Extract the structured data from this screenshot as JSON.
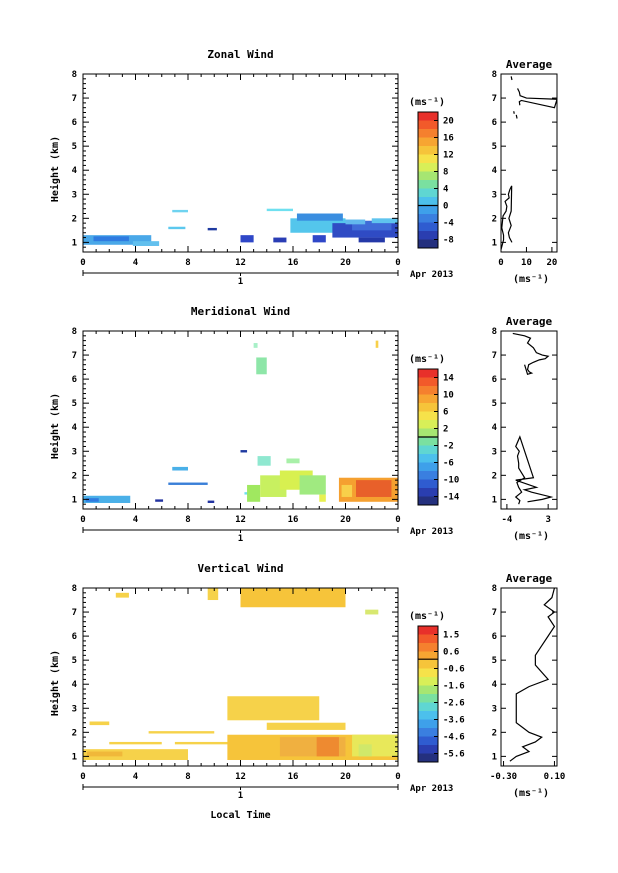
{
  "chart_data": [
    {
      "type": "heatmap",
      "title": "Zonal Wind",
      "ylabel": "Height (km)",
      "ylim": [
        0.6,
        8
      ],
      "yticks": [
        "1",
        "2",
        "3",
        "4",
        "5",
        "6",
        "7",
        "8"
      ],
      "xlim": [
        0,
        24
      ],
      "xticks": [
        "0",
        "4",
        "8",
        "12",
        "16",
        "20",
        "0"
      ],
      "day_label": "1",
      "month_label": "Apr 2013",
      "colorbar": {
        "unit": "(ms⁻¹)",
        "ticks": [
          "20",
          "16",
          "12",
          "8",
          "4",
          "0",
          "-4",
          "-8"
        ],
        "min": -10,
        "max": 22,
        "zero_line": 0
      },
      "patches": [
        {
          "x0": 0,
          "x1": 5.2,
          "y0": 0.9,
          "y1": 1.3,
          "c": "#4aa8e8"
        },
        {
          "x0": 0.8,
          "x1": 3.5,
          "y0": 1.05,
          "y1": 1.25,
          "c": "#2f7be0"
        },
        {
          "x0": 3.8,
          "x1": 5.8,
          "y0": 0.85,
          "y1": 1.05,
          "c": "#62c0ee"
        },
        {
          "x0": 6.8,
          "x1": 8,
          "y0": 2.25,
          "y1": 2.35,
          "c": "#6fd3f0"
        },
        {
          "x0": 6.5,
          "x1": 7.8,
          "y0": 1.55,
          "y1": 1.65,
          "c": "#5cc8ee"
        },
        {
          "x0": 9.5,
          "x1": 10.2,
          "y0": 1.5,
          "y1": 1.6,
          "c": "#1f3aa0"
        },
        {
          "x0": 12,
          "x1": 13,
          "y0": 1.0,
          "y1": 1.3,
          "c": "#2f47c8"
        },
        {
          "x0": 14,
          "x1": 16,
          "y0": 2.3,
          "y1": 2.4,
          "c": "#6fe0f0"
        },
        {
          "x0": 14.5,
          "x1": 15.5,
          "y0": 1.0,
          "y1": 1.2,
          "c": "#2a3db5"
        },
        {
          "x0": 15.8,
          "x1": 20,
          "y0": 1.4,
          "y1": 2.0,
          "c": "#54c6ec"
        },
        {
          "x0": 16.3,
          "x1": 19.8,
          "y0": 1.9,
          "y1": 2.2,
          "c": "#3a8ee0"
        },
        {
          "x0": 17.5,
          "x1": 18.5,
          "y0": 1.0,
          "y1": 1.3,
          "c": "#2f47c8"
        },
        {
          "x0": 19,
          "x1": 24,
          "y0": 1.2,
          "y1": 1.8,
          "c": "#2f4bc4"
        },
        {
          "x0": 20.5,
          "x1": 23.5,
          "y0": 1.5,
          "y1": 1.9,
          "c": "#3f6bd8"
        },
        {
          "x0": 21,
          "x1": 23,
          "y0": 1.0,
          "y1": 1.2,
          "c": "#2438a8"
        },
        {
          "x0": 20,
          "x1": 21.5,
          "y0": 1.75,
          "y1": 1.95,
          "c": "#63b9ee"
        },
        {
          "x0": 22,
          "x1": 24,
          "y0": 1.8,
          "y1": 2.0,
          "c": "#5fc4ee"
        }
      ],
      "profile": {
        "x": [
          0,
          0.5,
          1,
          1,
          0.3,
          0.5,
          0.8,
          2,
          2.3,
          1.6,
          3.2,
          2.9,
          3.5,
          4.2,
          4,
          3.1,
          4,
          2.9,
          3.3,
          4.3
        ],
        "y": [
          0.7,
          0.9,
          1.1,
          1.3,
          1.6,
          1.8,
          2.1,
          2.3,
          2.5,
          2.7,
          2.85,
          3.0,
          3.2,
          3.35,
          2.3,
          2.0,
          1.7,
          1.4,
          1.2,
          1.0
        ],
        "segments": [
          {
            "x": [
              6.5,
              7.2,
              7.5,
              10,
              22,
              21,
              8,
              7.2,
              7.4
            ],
            "y": [
              7.4,
              7.25,
              7.1,
              7.0,
              6.95,
              6.6,
              6.9,
              6.85,
              6.7
            ]
          },
          {
            "x": [
              6.0,
              6.3
            ],
            "y": [
              6.3,
              6.15
            ]
          },
          {
            "x": [
              4.0,
              4.3
            ],
            "y": [
              7.9,
              7.75
            ]
          },
          {
            "x": [
              5.0,
              5.2
            ],
            "y": [
              6.45,
              6.35
            ]
          }
        ],
        "xlim": [
          0,
          22
        ],
        "xticks": [
          "0",
          "10",
          "20"
        ],
        "title": "Average",
        "xlabel": "(ms⁻¹)"
      }
    },
    {
      "type": "heatmap",
      "title": "Meridional Wind",
      "ylabel": "Height (km)",
      "ylim": [
        0.6,
        8
      ],
      "yticks": [
        "1",
        "2",
        "3",
        "4",
        "5",
        "6",
        "7",
        "8"
      ],
      "xlim": [
        0,
        24
      ],
      "xticks": [
        "0",
        "4",
        "8",
        "12",
        "16",
        "20",
        "0"
      ],
      "day_label": "1",
      "month_label": "Apr 2013",
      "colorbar": {
        "unit": "(ms⁻¹)",
        "ticks": [
          "14",
          "10",
          "6",
          "2",
          "-2",
          "-6",
          "-10",
          "-14"
        ],
        "min": -16,
        "max": 16,
        "zero_line": 0
      },
      "patches": [
        {
          "x0": 0,
          "x1": 3.6,
          "y0": 0.85,
          "y1": 1.15,
          "c": "#4ab0e8"
        },
        {
          "x0": 0.2,
          "x1": 1.2,
          "y0": 0.9,
          "y1": 1.05,
          "c": "#2f7be0"
        },
        {
          "x0": 5.5,
          "x1": 6.1,
          "y0": 0.9,
          "y1": 1.0,
          "c": "#2233a0"
        },
        {
          "x0": 6.8,
          "x1": 8,
          "y0": 2.2,
          "y1": 2.35,
          "c": "#4ab0e8"
        },
        {
          "x0": 6.5,
          "x1": 9.5,
          "y0": 1.6,
          "y1": 1.7,
          "c": "#3a7fd8"
        },
        {
          "x0": 9.5,
          "x1": 10,
          "y0": 0.85,
          "y1": 0.95,
          "c": "#2233a0"
        },
        {
          "x0": 12,
          "x1": 12.5,
          "y0": 2.95,
          "y1": 3.05,
          "c": "#1f3aa0"
        },
        {
          "x0": 12.3,
          "x1": 13,
          "y0": 1.2,
          "y1": 1.3,
          "c": "#6ee0ee"
        },
        {
          "x0": 13.2,
          "x1": 14,
          "y0": 6.2,
          "y1": 6.9,
          "c": "#8ee6a8"
        },
        {
          "x0": 13.0,
          "x1": 13.3,
          "y0": 7.3,
          "y1": 7.5,
          "c": "#a8f0c8"
        },
        {
          "x0": 13.3,
          "x1": 14.3,
          "y0": 2.4,
          "y1": 2.8,
          "c": "#8fe8d0"
        },
        {
          "x0": 12.5,
          "x1": 13.5,
          "y0": 0.9,
          "y1": 1.6,
          "c": "#a0e860"
        },
        {
          "x0": 13.5,
          "x1": 15.5,
          "y0": 1.1,
          "y1": 2.0,
          "c": "#c8f060"
        },
        {
          "x0": 15,
          "x1": 17.5,
          "y0": 1.4,
          "y1": 2.2,
          "c": "#d8f050"
        },
        {
          "x0": 15.5,
          "x1": 16.5,
          "y0": 2.5,
          "y1": 2.7,
          "c": "#a8f0a8"
        },
        {
          "x0": 16.5,
          "x1": 18.5,
          "y0": 1.2,
          "y1": 2.0,
          "c": "#a0ea80"
        },
        {
          "x0": 18,
          "x1": 18.5,
          "y0": 0.9,
          "y1": 1.2,
          "c": "#e8f050"
        },
        {
          "x0": 19.5,
          "x1": 24,
          "y0": 0.9,
          "y1": 1.9,
          "c": "#f5a030"
        },
        {
          "x0": 20.8,
          "x1": 23.5,
          "y0": 1.1,
          "y1": 1.8,
          "c": "#e8602a"
        },
        {
          "x0": 19.7,
          "x1": 20.5,
          "y0": 1.1,
          "y1": 1.6,
          "c": "#f8d04a"
        },
        {
          "x0": 22.3,
          "x1": 22.5,
          "y0": 7.3,
          "y1": 7.6,
          "c": "#f8d04a"
        }
      ],
      "profile": {
        "x": [
          -2,
          -1.8,
          -2.5,
          -1.5,
          -2,
          -2.3,
          -1.0,
          -1.5,
          -2.0,
          -2.0,
          -2.2,
          -1.9,
          -2.5,
          -1.8,
          0.5,
          -2.5,
          1.0,
          -1.0,
          0.2,
          3.5,
          2.0,
          -0.5
        ],
        "y": [
          0.8,
          0.95,
          1.1,
          1.3,
          1.5,
          1.7,
          1.9,
          2.1,
          2.3,
          2.5,
          2.8,
          3.0,
          3.2,
          3.6,
          1.9,
          1.8,
          1.5,
          1.4,
          1.3,
          1.1,
          1.0,
          0.9
        ],
        "segments": [
          {
            "x": [
              -3.0,
              -1.0,
              0,
              -0.5,
              0.5,
              1.0,
              2.0,
              3.0,
              2.5,
              1.5,
              0.5,
              -0.3,
              -0.5,
              -0.2,
              0.2,
              -0.5,
              -1.0
            ],
            "y": [
              7.9,
              7.8,
              7.7,
              7.5,
              7.3,
              7.1,
              7.0,
              6.95,
              6.85,
              6.8,
              6.7,
              6.6,
              6.4,
              6.3,
              6.25,
              6.2,
              6.6
            ]
          }
        ],
        "xlim": [
          -5,
          4.5
        ],
        "xticks": [
          "-4",
          "3"
        ],
        "title": "Average",
        "xlabel": "(ms⁻¹)"
      }
    },
    {
      "type": "heatmap",
      "title": "Vertical Wind",
      "ylabel": "Height (km)",
      "ylim": [
        0.6,
        8
      ],
      "yticks": [
        "1",
        "2",
        "3",
        "4",
        "5",
        "6",
        "7",
        "8"
      ],
      "xlim": [
        0,
        24
      ],
      "xticks": [
        "0",
        "4",
        "8",
        "12",
        "16",
        "20",
        "0"
      ],
      "day_label": "1",
      "month_label": "Apr 2013",
      "xlabel": "Local Time",
      "colorbar": {
        "unit": "(ms⁻¹)",
        "ticks": [
          "1.5",
          "0.6",
          "-0.6",
          "-1.6",
          "-2.6",
          "-3.6",
          "-4.6",
          "-5.6"
        ],
        "min": -6.2,
        "max": 2.0,
        "zero_line": 0
      },
      "patches": [
        {
          "x0": 0,
          "x1": 8,
          "y0": 0.85,
          "y1": 1.3,
          "c": "#f6d24a"
        },
        {
          "x0": 0.3,
          "x1": 3,
          "y0": 1.0,
          "y1": 1.2,
          "c": "#f0b83a"
        },
        {
          "x0": 2,
          "x1": 6,
          "y0": 1.5,
          "y1": 1.6,
          "c": "#f6d24a"
        },
        {
          "x0": 0.5,
          "x1": 2,
          "y0": 2.3,
          "y1": 2.45,
          "c": "#f6d24a"
        },
        {
          "x0": 5,
          "x1": 10,
          "y0": 1.95,
          "y1": 2.05,
          "c": "#f6d24a"
        },
        {
          "x0": 7,
          "x1": 12,
          "y0": 1.5,
          "y1": 1.6,
          "c": "#f6d24a"
        },
        {
          "x0": 11,
          "x1": 24,
          "y0": 0.85,
          "y1": 1.9,
          "c": "#f6c43a"
        },
        {
          "x0": 15,
          "x1": 20,
          "y0": 1.0,
          "y1": 1.8,
          "c": "#f0b040"
        },
        {
          "x0": 17.8,
          "x1": 19.5,
          "y0": 1.0,
          "y1": 1.8,
          "c": "#ee8a30"
        },
        {
          "x0": 20.5,
          "x1": 24,
          "y0": 1.0,
          "y1": 1.9,
          "c": "#e8e85a"
        },
        {
          "x0": 21,
          "x1": 22,
          "y0": 1.0,
          "y1": 1.5,
          "c": "#d0e86a"
        },
        {
          "x0": 11,
          "x1": 18,
          "y0": 2.5,
          "y1": 3.5,
          "c": "#f6d24a"
        },
        {
          "x0": 14,
          "x1": 20,
          "y0": 2.1,
          "y1": 2.4,
          "c": "#f6d24a"
        },
        {
          "x0": 12,
          "x1": 20,
          "y0": 7.2,
          "y1": 8.0,
          "c": "#f6c43a"
        },
        {
          "x0": 9.5,
          "x1": 10.3,
          "y0": 7.5,
          "y1": 8.0,
          "c": "#f6d24a"
        },
        {
          "x0": 2.5,
          "x1": 3.5,
          "y0": 7.6,
          "y1": 7.8,
          "c": "#f6d24a"
        },
        {
          "x0": 21.5,
          "x1": 22.5,
          "y0": 6.9,
          "y1": 7.1,
          "c": "#d8e870"
        }
      ],
      "profile": {
        "x": [
          -0.25,
          -0.2,
          -0.1,
          -0.15,
          -0.05,
          0.0,
          -0.1,
          -0.15,
          -0.2,
          -0.2,
          -0.2,
          -0.2,
          -0.1,
          0.05,
          -0.05,
          -0.05,
          0.0,
          0.05,
          0.1,
          0.05,
          0.1,
          0.02,
          0.08,
          0.1
        ],
        "y": [
          0.8,
          1.0,
          1.2,
          1.4,
          1.6,
          1.8,
          2.0,
          2.2,
          2.4,
          2.8,
          3.2,
          3.6,
          3.9,
          4.2,
          4.8,
          5.2,
          5.6,
          6.0,
          6.4,
          6.8,
          7.0,
          7.3,
          7.6,
          8.0
        ],
        "segments": [],
        "xlim": [
          -0.32,
          0.12
        ],
        "xticks": [
          "-0.30",
          "0.10"
        ],
        "title": "Average",
        "xlabel": "(ms⁻¹)"
      }
    }
  ]
}
